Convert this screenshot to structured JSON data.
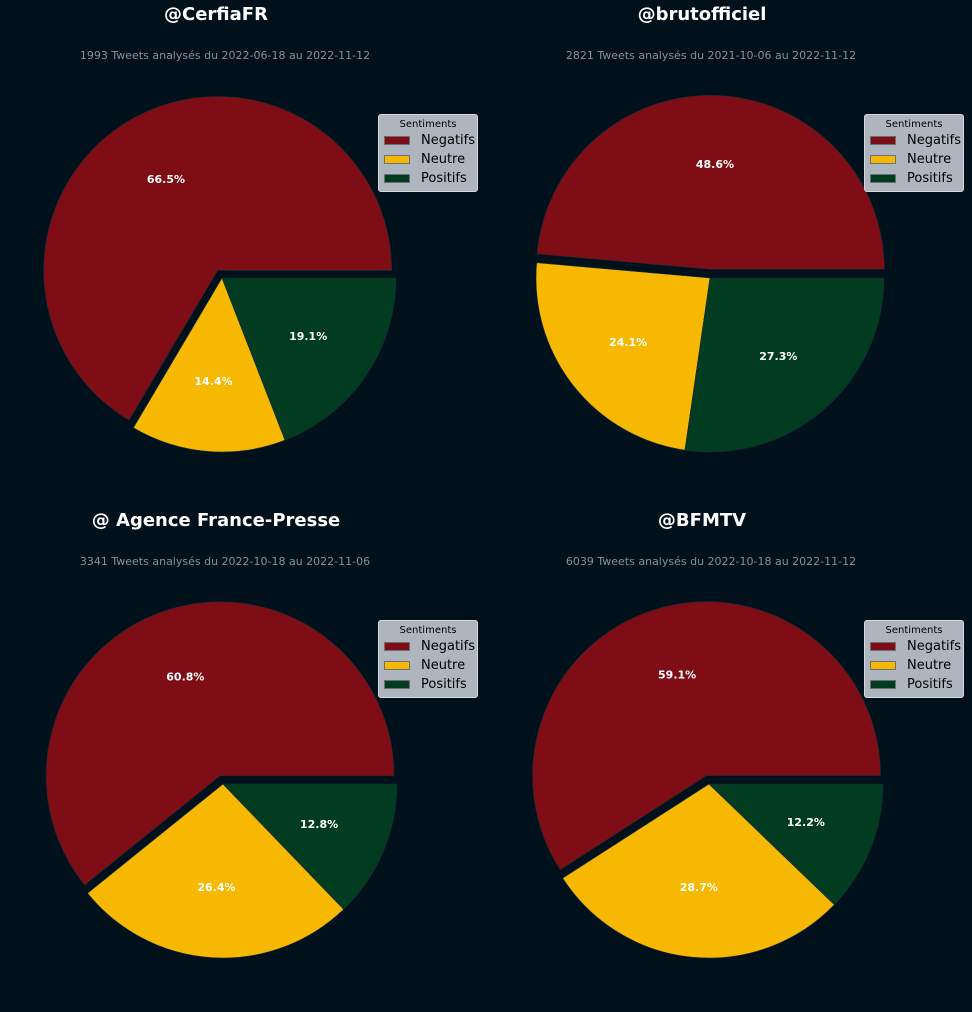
{
  "colors": {
    "background": "#00111b",
    "Negatifs": "#7e0d15",
    "Neutre": "#f6b800",
    "Positifs": "#013b20"
  },
  "legend_title": "Sentiments",
  "chart_data": [
    {
      "type": "pie",
      "title": "@CerfiaFR",
      "subtitle": "1993 Tweets analysés du 2022-06-18 au 2022-11-12",
      "labels": [
        "Negatifs",
        "Neutre",
        "Positifs"
      ],
      "values": [
        66.5,
        14.4,
        19.1
      ],
      "value_labels": [
        "66.5%",
        "14.4%",
        "19.1%"
      ],
      "legend_title": "Sentiments",
      "legend_position": "top-right"
    },
    {
      "type": "pie",
      "title": "@brutofficiel",
      "subtitle": "2821 Tweets analysés du 2021-10-06 au 2022-11-12",
      "labels": [
        "Negatifs",
        "Neutre",
        "Positifs"
      ],
      "values": [
        48.6,
        24.1,
        27.3
      ],
      "value_labels": [
        "48.6%",
        "24.1%",
        "27.3%"
      ],
      "legend_title": "Sentiments",
      "legend_position": "top-right"
    },
    {
      "type": "pie",
      "title": "@ Agence France-Presse",
      "subtitle": "3341 Tweets analysés du 2022-10-18 au 2022-11-06",
      "labels": [
        "Negatifs",
        "Neutre",
        "Positifs"
      ],
      "values": [
        60.8,
        26.4,
        12.8
      ],
      "value_labels": [
        "60.8%",
        "26.4%",
        "12.8%"
      ],
      "legend_title": "Sentiments",
      "legend_position": "top-right"
    },
    {
      "type": "pie",
      "title": "@BFMTV",
      "subtitle": "6039 Tweets analysés du 2022-10-18 au 2022-11-12",
      "labels": [
        "Negatifs",
        "Neutre",
        "Positifs"
      ],
      "values": [
        59.1,
        28.7,
        12.2
      ],
      "value_labels": [
        "59.1%",
        "28.7%",
        "12.2%"
      ],
      "legend_title": "Sentiments",
      "legend_position": "top-right"
    }
  ]
}
